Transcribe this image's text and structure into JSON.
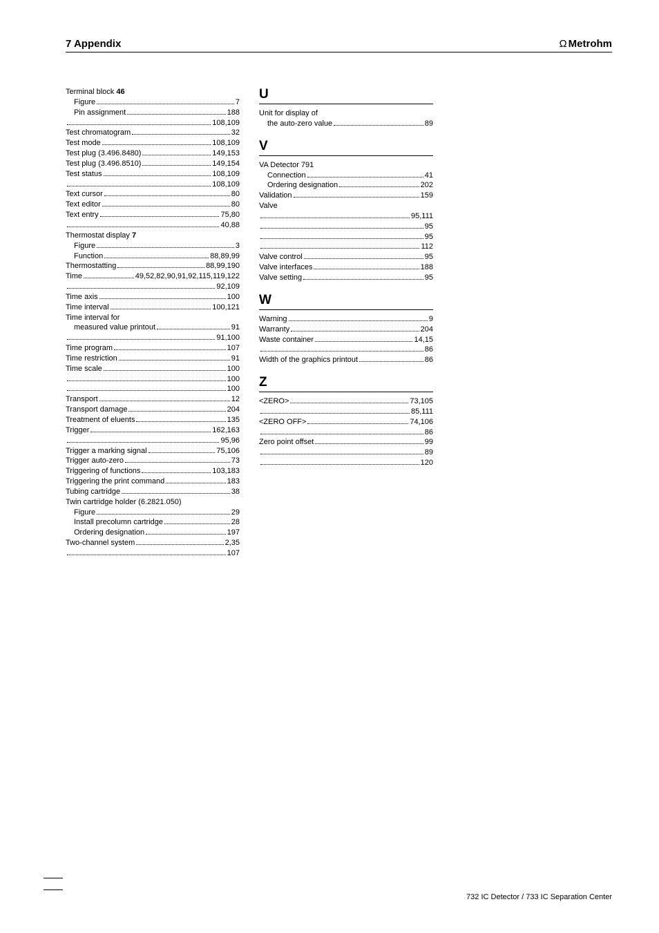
{
  "header": {
    "left": "7 Appendix",
    "right": "Metrohm",
    "logo_glyph": "Ω"
  },
  "footer": "732 IC Detector  /  733 IC Separation Center",
  "col1": [
    {
      "type": "entry",
      "label": "Terminal block",
      "bold": "46",
      "pages": "",
      "noline": true
    },
    {
      "type": "entry",
      "sub": 1,
      "label": "Figure",
      "pages": "7"
    },
    {
      "type": "entry",
      "sub": 1,
      "label": "Pin assignment",
      "pages": "188"
    },
    {
      "type": "entry",
      "label": "",
      "pages": "108,109"
    },
    {
      "type": "entry",
      "label": "Test chromatogram",
      "pages": "32"
    },
    {
      "type": "entry",
      "label": "Test mode",
      "pages": "108,109"
    },
    {
      "type": "entry",
      "label": "Test plug (3.496.8480)",
      "pages": "149,153"
    },
    {
      "type": "entry",
      "label": "Test plug (3.496.8510)",
      "pages": "149,154"
    },
    {
      "type": "entry",
      "label": "Test status",
      "pages": "108,109"
    },
    {
      "type": "entry",
      "label": "",
      "pages": "108,109"
    },
    {
      "type": "entry",
      "label": "Text cursor",
      "pages": "80"
    },
    {
      "type": "entry",
      "label": "Text editor",
      "pages": "80"
    },
    {
      "type": "entry",
      "label": "Text entry",
      "pages": "75,80"
    },
    {
      "type": "entry",
      "label": "",
      "pages": "40,88"
    },
    {
      "type": "entry",
      "label": "Thermostat display",
      "bold": "7",
      "pages": "",
      "noline": true
    },
    {
      "type": "entry",
      "sub": 1,
      "label": "Figure",
      "pages": "3"
    },
    {
      "type": "entry",
      "sub": 1,
      "label": "Function",
      "pages": "88,89,99"
    },
    {
      "type": "entry",
      "label": "Thermostatting",
      "pages": "88,99,190"
    },
    {
      "type": "entry",
      "label": "Time",
      "pages": "49,52,82,90,91,92,115,119,122"
    },
    {
      "type": "entry",
      "label": "",
      "pages": "92,109"
    },
    {
      "type": "entry",
      "label": "Time axis",
      "pages": "100"
    },
    {
      "type": "entry",
      "label": "Time interval",
      "pages": "100,121"
    },
    {
      "type": "entry",
      "label": "Time interval for",
      "pages": "",
      "noline": true
    },
    {
      "type": "entry",
      "sub": 1,
      "label": "measured value printout",
      "pages": "91"
    },
    {
      "type": "entry",
      "label": "",
      "pages": "91,100"
    },
    {
      "type": "entry",
      "label": "Time program",
      "pages": "107"
    },
    {
      "type": "entry",
      "label": "Time restriction",
      "pages": "91"
    },
    {
      "type": "entry",
      "label": "Time scale",
      "pages": "100"
    },
    {
      "type": "entry",
      "label": "",
      "pages": "100"
    },
    {
      "type": "entry",
      "label": "",
      "pages": "100"
    },
    {
      "type": "entry",
      "label": "Transport",
      "pages": "12"
    },
    {
      "type": "entry",
      "label": "Transport damage",
      "pages": "204"
    },
    {
      "type": "entry",
      "label": "Treatment of eluents",
      "pages": "135"
    },
    {
      "type": "entry",
      "label": "Trigger",
      "pages": "162,163"
    },
    {
      "type": "entry",
      "label": "",
      "pages": "95,96"
    },
    {
      "type": "entry",
      "label": "Trigger a marking signal",
      "pages": "75,106"
    },
    {
      "type": "entry",
      "label": "Trigger auto-zero",
      "pages": "73"
    },
    {
      "type": "entry",
      "label": "Triggering of functions",
      "pages": "103,183"
    },
    {
      "type": "entry",
      "label": "Triggering the print command",
      "pages": "183"
    },
    {
      "type": "entry",
      "label": "Tubing cartridge",
      "pages": "38"
    },
    {
      "type": "entry",
      "label": "Twin cartridge holder (6.2821.050)",
      "pages": "",
      "noline": true
    },
    {
      "type": "entry",
      "sub": 1,
      "label": "Figure",
      "pages": "29"
    },
    {
      "type": "entry",
      "sub": 1,
      "label": "Install precolumn cartridge",
      "pages": "28"
    },
    {
      "type": "entry",
      "sub": 1,
      "label": "Ordering designation",
      "pages": "197"
    },
    {
      "type": "entry",
      "label": "Two-channel system",
      "pages": "2,35"
    },
    {
      "type": "entry",
      "label": "",
      "pages": "107"
    }
  ],
  "col2": [
    {
      "type": "heading",
      "text": "U"
    },
    {
      "type": "entry",
      "label": "Unit for display of",
      "pages": "",
      "noline": true
    },
    {
      "type": "entry",
      "sub": 1,
      "label": "the auto-zero value",
      "pages": "89"
    },
    {
      "type": "heading",
      "text": "V"
    },
    {
      "type": "entry",
      "label": "VA Detector 791",
      "pages": "",
      "noline": true
    },
    {
      "type": "entry",
      "sub": 1,
      "label": "Connection",
      "pages": "41"
    },
    {
      "type": "entry",
      "sub": 1,
      "label": "Ordering designation",
      "pages": "202"
    },
    {
      "type": "entry",
      "label": "Validation",
      "pages": "159"
    },
    {
      "type": "entry",
      "label": "Valve",
      "pages": "",
      "noline": true
    },
    {
      "type": "entry",
      "label": "",
      "pages": "95,111"
    },
    {
      "type": "entry",
      "label": "",
      "pages": "95"
    },
    {
      "type": "entry",
      "label": "",
      "pages": "95"
    },
    {
      "type": "entry",
      "label": "",
      "pages": "112"
    },
    {
      "type": "entry",
      "label": "Valve control",
      "pages": "95"
    },
    {
      "type": "entry",
      "label": "Valve interfaces",
      "pages": "188"
    },
    {
      "type": "entry",
      "label": "Valve setting",
      "pages": "95"
    },
    {
      "type": "heading",
      "text": "W"
    },
    {
      "type": "entry",
      "label": "Warning",
      "pages": "9"
    },
    {
      "type": "entry",
      "label": "Warranty",
      "pages": "204"
    },
    {
      "type": "entry",
      "label": "Waste container",
      "pages": "14,15"
    },
    {
      "type": "entry",
      "label": "",
      "pages": "86"
    },
    {
      "type": "entry",
      "label": "Width of the graphics printout",
      "pages": "86"
    },
    {
      "type": "heading",
      "text": "Z"
    },
    {
      "type": "entry",
      "label": "<ZERO>",
      "pages": "73,105"
    },
    {
      "type": "entry",
      "label": "",
      "pages": "85,111"
    },
    {
      "type": "entry",
      "label": "<ZERO OFF>",
      "pages": "74,106"
    },
    {
      "type": "entry",
      "label": "",
      "pages": "86"
    },
    {
      "type": "entry",
      "label": "Zero point offset",
      "pages": "99"
    },
    {
      "type": "entry",
      "label": "",
      "pages": "89"
    },
    {
      "type": "entry",
      "label": "",
      "pages": "120"
    }
  ]
}
